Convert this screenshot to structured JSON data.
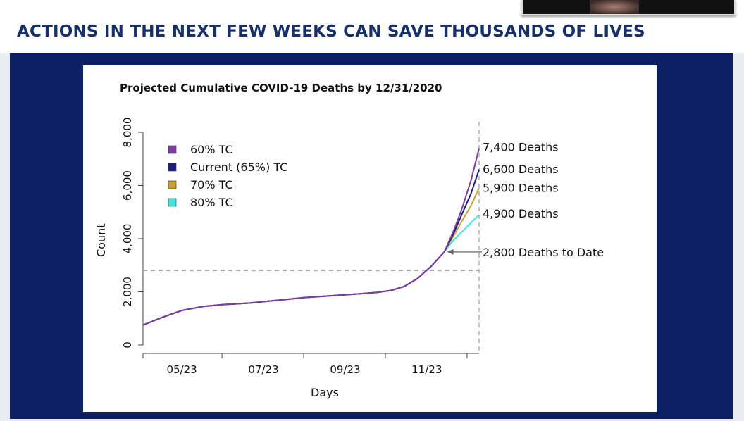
{
  "slide": {
    "headline": "ACTIONS IN THE NEXT FEW WEEKS CAN SAVE THOUSANDS OF LIVES"
  },
  "chart_data": {
    "type": "line",
    "title": "Projected Cumulative COVID-19 Deaths by 12/31/2020",
    "xlabel": "Days",
    "ylabel": "Count",
    "ylim": [
      0,
      8000
    ],
    "xlim": [
      0,
      251
    ],
    "yticks": [
      0,
      2000,
      4000,
      6000,
      8000
    ],
    "ytick_labels": [
      "0",
      "2,000",
      "4,000",
      "6,000",
      "8,000"
    ],
    "xticks": [
      29,
      90,
      151,
      212
    ],
    "xtick_labels": [
      "05/23",
      "07/23",
      "09/23",
      "11/23"
    ],
    "legend_placement": "top-left",
    "x": [
      0,
      15,
      29,
      45,
      60,
      80,
      100,
      120,
      140,
      160,
      175,
      185,
      195,
      205,
      215,
      225,
      232,
      238,
      245,
      251
    ],
    "series": [
      {
        "name": "60% TC",
        "color": "#7b3d9e",
        "values": [
          750,
          1050,
          1300,
          1450,
          1520,
          1580,
          1680,
          1780,
          1850,
          1920,
          1980,
          2050,
          2200,
          2500,
          2950,
          3500,
          4300,
          5100,
          6200,
          7400
        ]
      },
      {
        "name": "Current (65%) TC",
        "color": "#1c1c80",
        "values": [
          750,
          1050,
          1300,
          1450,
          1520,
          1580,
          1680,
          1780,
          1850,
          1920,
          1980,
          2050,
          2200,
          2500,
          2950,
          3500,
          4200,
          4900,
          5700,
          6600
        ]
      },
      {
        "name": "70% TC",
        "color": "#c9a233",
        "values": [
          750,
          1050,
          1300,
          1450,
          1520,
          1580,
          1680,
          1780,
          1850,
          1920,
          1980,
          2050,
          2200,
          2500,
          2950,
          3500,
          4100,
          4650,
          5250,
          5900
        ]
      },
      {
        "name": "80% TC",
        "color": "#3fe3e0",
        "values": [
          750,
          1050,
          1300,
          1450,
          1520,
          1580,
          1680,
          1780,
          1850,
          1920,
          1980,
          2050,
          2200,
          2500,
          2950,
          3500,
          3950,
          4250,
          4600,
          4900
        ]
      }
    ],
    "reference_lines": {
      "horizontal_y": 2800,
      "vertical_x": 251
    },
    "annotations": [
      {
        "text": "7,400 Deaths",
        "y": 7400
      },
      {
        "text": "6,600 Deaths",
        "y": 6600
      },
      {
        "text": "5,900 Deaths",
        "y": 5900
      },
      {
        "text": "4,900 Deaths",
        "y": 4900
      },
      {
        "text": "2,800 Deaths to Date",
        "y": 3500,
        "arrow_to_x": 225
      }
    ]
  }
}
